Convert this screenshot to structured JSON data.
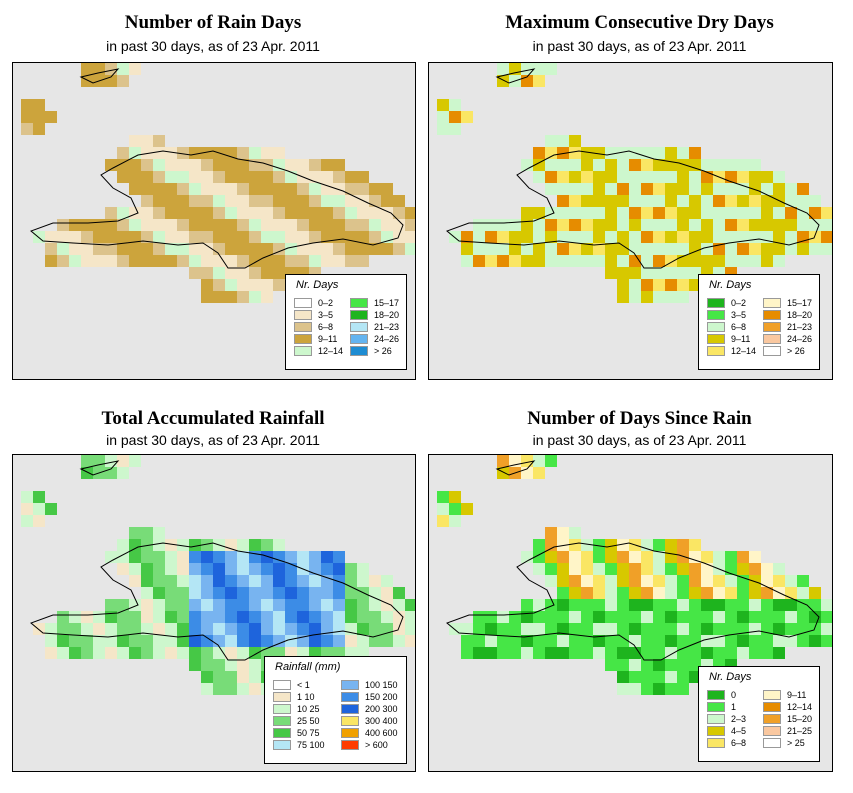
{
  "panels": [
    {
      "id": "rain_days",
      "title": "Number of Rain Days",
      "subtitle": "in past 30 days, as of  23 Apr. 2011",
      "legend": {
        "title": "Nr. Days",
        "items": [
          {
            "label": "0–2",
            "color": "#ffffff"
          },
          {
            "label": "3–5",
            "color": "#f5e6c8"
          },
          {
            "label": "6–8",
            "color": "#dcc38c"
          },
          {
            "label": "9–11",
            "color": "#cca43c"
          },
          {
            "label": "12–14",
            "color": "#cdf7cd"
          },
          {
            "label": "15–17",
            "color": "#46e646"
          },
          {
            "label": "18–20",
            "color": "#1eb41e"
          },
          {
            "label": "21–23",
            "color": "#b4e6f5"
          },
          {
            "label": "24–26",
            "color": "#64b4f0"
          },
          {
            "label": "> 26",
            "color": "#1e8cd2"
          }
        ]
      }
    },
    {
      "id": "max_dry",
      "title": "Maximum Consecutive Dry Days",
      "subtitle": "in past 30 days, as of  23 Apr. 2011",
      "legend": {
        "title": "Nr. Days",
        "items": [
          {
            "label": "0–2",
            "color": "#1eb41e"
          },
          {
            "label": "3–5",
            "color": "#46e646"
          },
          {
            "label": "6–8",
            "color": "#cdf7cd"
          },
          {
            "label": "9–11",
            "color": "#d7c800"
          },
          {
            "label": "12–14",
            "color": "#fae664"
          },
          {
            "label": "15–17",
            "color": "#fff5c8"
          },
          {
            "label": "18–20",
            "color": "#e68c00"
          },
          {
            "label": "21–23",
            "color": "#f0a028"
          },
          {
            "label": "24–26",
            "color": "#fac8a0"
          },
          {
            "label": "> 26",
            "color": "#ffffff"
          }
        ]
      }
    },
    {
      "id": "total_rain",
      "title": "Total Accumulated Rainfall",
      "subtitle": "in past 30 days, as of  23 Apr. 2011",
      "legend": {
        "title": "Rainfall (mm)",
        "items": [
          {
            "label": "< 1",
            "color": "#ffffff"
          },
          {
            "label": "1    10",
            "color": "#f5e6c8"
          },
          {
            "label": "10   25",
            "color": "#cdf7cd"
          },
          {
            "label": "25   50",
            "color": "#78dc78"
          },
          {
            "label": "50   75",
            "color": "#46c846"
          },
          {
            "label": "75  100",
            "color": "#b4e6f5"
          },
          {
            "label": "100  150",
            "color": "#78b4f0"
          },
          {
            "label": "150  200",
            "color": "#3c8ce6"
          },
          {
            "label": "200  300",
            "color": "#1e64dc"
          },
          {
            "label": "300  400",
            "color": "#fae664"
          },
          {
            "label": "400  600",
            "color": "#f0a000"
          },
          {
            "label": "> 600",
            "color": "#ff3c00"
          }
        ]
      }
    },
    {
      "id": "days_since",
      "title": "Number of Days Since Rain",
      "subtitle": "in past 30 days, as of  23 Apr. 2011",
      "legend": {
        "title": "Nr. Days",
        "items": [
          {
            "label": "0",
            "color": "#1eb41e"
          },
          {
            "label": "1",
            "color": "#46e646"
          },
          {
            "label": "2–3",
            "color": "#cdf7cd"
          },
          {
            "label": "4–5",
            "color": "#d7c800"
          },
          {
            "label": "6–8",
            "color": "#fae664"
          },
          {
            "label": "9–11",
            "color": "#fff5c8"
          },
          {
            "label": "12–14",
            "color": "#e68c00"
          },
          {
            "label": "15–20",
            "color": "#f0a028"
          },
          {
            "label": "21–25",
            "color": "#fac8a0"
          },
          {
            "label": "> 25",
            "color": "#ffffff"
          }
        ]
      }
    }
  ]
}
